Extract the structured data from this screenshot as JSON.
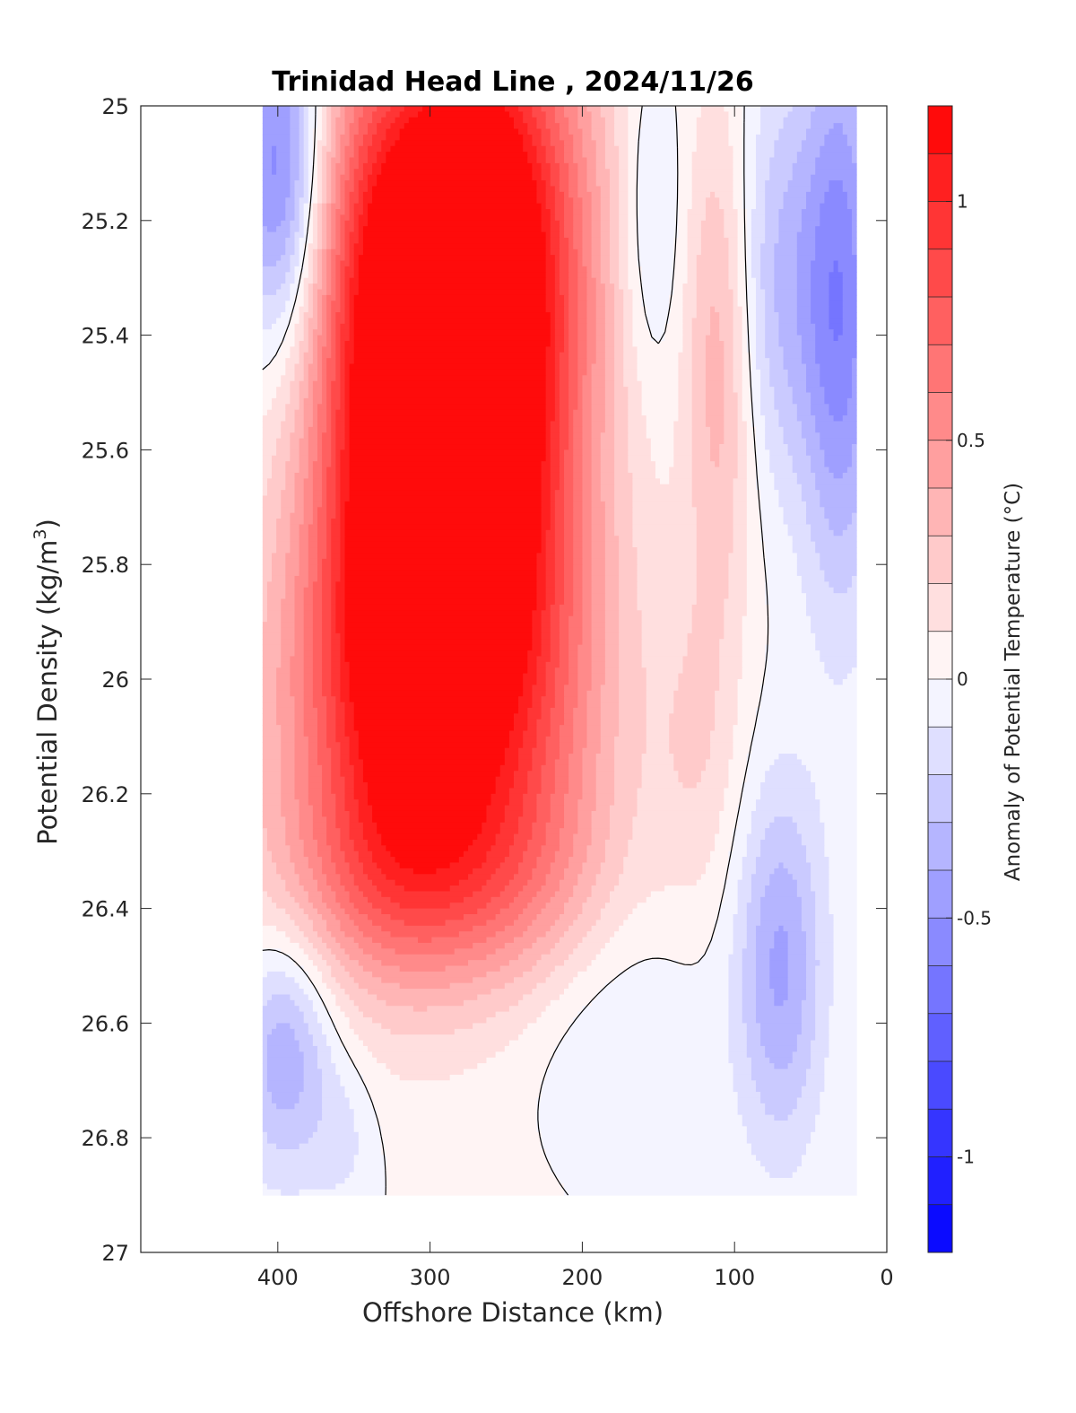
{
  "chart_data": {
    "type": "heatmap",
    "subtype": "filled-contour",
    "title": "Trinidad Head Line , 2024/11/26",
    "xlabel": "Offshore Distance (km)",
    "ylabel": "Potential Density (kg/m",
    "ylabel_sup": "3",
    "ylabel_close": ")",
    "xlim": [
      490,
      0
    ],
    "x_reversed": true,
    "ylim": [
      25,
      27
    ],
    "y_reversed": true,
    "x_ticks": [
      400,
      300,
      200,
      100,
      0
    ],
    "y_ticks": [
      25,
      25.2,
      25.4,
      25.6,
      25.8,
      26,
      26.2,
      26.4,
      26.6,
      26.8,
      27
    ],
    "y_tick_labels": [
      "25",
      "25.2",
      "25.4",
      "25.6",
      "25.8",
      "26",
      "26.2",
      "26.4",
      "26.6",
      "26.8",
      "27"
    ],
    "data_extent": {
      "x": [
        410,
        20
      ],
      "y": [
        25,
        26.9
      ]
    },
    "colorbar": {
      "label": "Anomaly of Potential Temperature (°C)",
      "range": [
        -1.2,
        1.2
      ],
      "step": 0.1,
      "ticks": [
        1,
        0.5,
        0,
        -0.5,
        -1
      ],
      "tick_labels": [
        "1",
        "0.5",
        "0",
        "-0.5",
        "-1"
      ],
      "colormap": "blue-white-red"
    },
    "blobs": [
      {
        "x": 320,
        "y": 25.62,
        "sx": 38,
        "sy": 0.42,
        "v": 1.12
      },
      {
        "x": 265,
        "y": 25.45,
        "sx": 36,
        "sy": 0.42,
        "v": 0.95
      },
      {
        "x": 300,
        "y": 25.2,
        "sx": 70,
        "sy": 0.28,
        "v": 0.55
      },
      {
        "x": 305,
        "y": 26.05,
        "sx": 75,
        "sy": 0.28,
        "v": 0.7
      },
      {
        "x": 300,
        "y": 26.35,
        "sx": 68,
        "sy": 0.13,
        "v": 0.38
      },
      {
        "x": 225,
        "y": 25.55,
        "sx": 38,
        "sy": 0.6,
        "v": 0.35
      },
      {
        "x": 110,
        "y": 25.45,
        "sx": 16,
        "sy": 0.32,
        "v": 0.35
      },
      {
        "x": 125,
        "y": 26.12,
        "sx": 20,
        "sy": 0.2,
        "v": 0.15
      },
      {
        "x": 398,
        "y": 25.12,
        "sx": 22,
        "sy": 0.22,
        "v": -0.75
      },
      {
        "x": 30,
        "y": 25.35,
        "sx": 18,
        "sy": 0.35,
        "v": -0.55
      },
      {
        "x": 70,
        "y": 25.3,
        "sx": 22,
        "sy": 0.25,
        "v": -0.3
      },
      {
        "x": 155,
        "y": 25.2,
        "sx": 15,
        "sy": 0.2,
        "v": -0.22
      },
      {
        "x": 70,
        "y": 26.5,
        "sx": 20,
        "sy": 0.22,
        "v": -0.42
      },
      {
        "x": 395,
        "y": 26.65,
        "sx": 22,
        "sy": 0.15,
        "v": -0.4
      },
      {
        "x": 190,
        "y": 26.62,
        "sx": 45,
        "sy": 0.16,
        "v": -0.15
      },
      {
        "x": 355,
        "y": 26.8,
        "sx": 15,
        "sy": 0.1,
        "v": -0.12
      }
    ]
  }
}
